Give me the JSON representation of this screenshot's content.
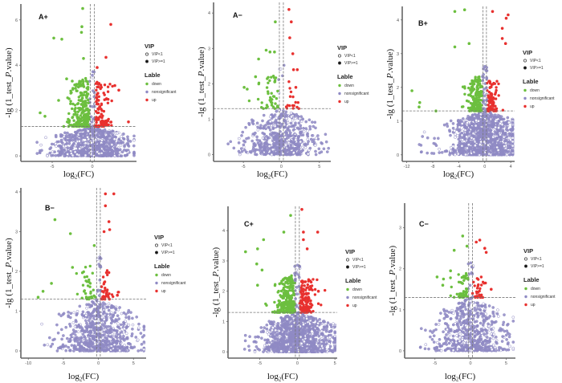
{
  "figure": {
    "description": "Six volcano plots of differential expression",
    "colors": {
      "down": "#6cbf3f",
      "nonsignificant": "#8f8ac4",
      "up": "#e8312f",
      "threshold_line": "#777777",
      "axis": "#666666"
    }
  },
  "chart_data": [
    {
      "type": "scatter",
      "panel_label": "A+",
      "xlabel": "log2(FC)",
      "ylabel": "-lg (1_test_P.value)",
      "xlim": [
        -8.5,
        5.5
      ],
      "ylim": [
        -0.1,
        6.7
      ],
      "x_ticks": [
        -5,
        0
      ],
      "y_ticks": [
        0,
        2,
        4,
        6
      ],
      "thresholds": {
        "fc_left": -0.263,
        "fc_right": 0.263,
        "p_line": 1.301
      },
      "legend": {
        "vip_title": "VIP",
        "vip_entries": [
          "VIP<1",
          "VIP>=1"
        ],
        "label_title": "Lable",
        "label_entries": [
          "down",
          "nonsignificant",
          "up"
        ]
      },
      "highlight_points": {
        "down": [
          [
            -1.2,
            6.5
          ],
          [
            -1.3,
            5.7
          ],
          [
            -1.35,
            5.45
          ],
          [
            -4.8,
            5.2
          ],
          [
            -3.8,
            5.15
          ],
          [
            -6.5,
            1.9
          ],
          [
            -5.9,
            1.75
          ],
          [
            -4.2,
            2.45
          ],
          [
            -3.2,
            3.4
          ],
          [
            -2.5,
            3.3
          ],
          [
            -1.1,
            4.3
          ]
        ],
        "up": [
          [
            2.3,
            5.8
          ],
          [
            1.7,
            4.35
          ],
          [
            0.6,
            3.9
          ],
          [
            3.3,
            2.9
          ],
          [
            4.5,
            1.5
          ],
          [
            2.8,
            3.1
          ]
        ]
      },
      "counts_estimate": {
        "down": 600,
        "up": 250,
        "nonsignificant": 3500
      }
    },
    {
      "type": "scatter",
      "panel_label": "A−",
      "xlabel": "log2(FC)",
      "ylabel": "-lg (1_test_P.value)",
      "xlim": [
        -8.5,
        6.5
      ],
      "ylim": [
        -0.1,
        4.3
      ],
      "x_ticks": [
        -5,
        0,
        5
      ],
      "y_ticks": [
        0,
        1,
        2,
        3,
        4
      ],
      "thresholds": {
        "fc_left": -0.263,
        "fc_right": 0.263,
        "p_line": 1.301
      },
      "legend": {
        "vip_title": "VIP",
        "vip_entries": [
          "VIP<1",
          "VIP>=1"
        ],
        "label_title": "Lable",
        "label_entries": [
          "down",
          "nonsignificant",
          "up"
        ]
      },
      "highlight_points": {
        "down": [
          [
            -0.8,
            3.75
          ],
          [
            -2.0,
            2.95
          ],
          [
            -0.9,
            2.9
          ],
          [
            -1.5,
            2.9
          ],
          [
            -3.0,
            2.7
          ],
          [
            -3.4,
            2.2
          ],
          [
            -4.9,
            1.9
          ],
          [
            -4.5,
            1.85
          ]
        ],
        "up": [
          [
            1.0,
            4.1
          ],
          [
            1.3,
            3.75
          ],
          [
            1.1,
            3.3
          ],
          [
            1.5,
            2.85
          ],
          [
            1.6,
            2.4
          ],
          [
            2.1,
            2.4
          ],
          [
            1.9,
            1.9
          ]
        ]
      },
      "counts_estimate": {
        "down": 110,
        "up": 40,
        "nonsignificant": 2500
      }
    },
    {
      "type": "scatter",
      "panel_label": "B+",
      "xlabel": "log2(FC)",
      "ylabel": "-lg (1_test_P.value)",
      "xlim": [
        -12.2,
        4.6
      ],
      "ylim": [
        -0.1,
        4.4
      ],
      "x_ticks": [
        -12,
        -8,
        -4,
        0,
        4
      ],
      "y_ticks": [
        0,
        1,
        2,
        3,
        4
      ],
      "thresholds": {
        "fc_left": -0.263,
        "fc_right": 0.263,
        "p_line": 1.301
      },
      "legend": {
        "vip_title": "VIP",
        "vip_entries": [
          "VIP<1",
          "VIP>=1"
        ],
        "label_title": "Lable",
        "label_entries": [
          "down",
          "nonsignificant",
          "up"
        ]
      },
      "highlight_points": {
        "down": [
          [
            -4.6,
            4.25
          ],
          [
            -3.1,
            4.3
          ],
          [
            -11.2,
            1.9
          ],
          [
            -10.0,
            1.55
          ],
          [
            -10.1,
            1.42
          ],
          [
            -7.5,
            1.3
          ],
          [
            -4.6,
            3.2
          ],
          [
            -2.4,
            3.3
          ]
        ],
        "up": [
          [
            1.2,
            4.25
          ],
          [
            3.6,
            4.15
          ],
          [
            3.3,
            4.05
          ],
          [
            2.7,
            3.75
          ],
          [
            2.7,
            3.45
          ],
          [
            3.2,
            3.3
          ]
        ]
      },
      "counts_estimate": {
        "down": 450,
        "up": 200,
        "nonsignificant": 6000
      }
    },
    {
      "type": "scatter",
      "panel_label": "B−",
      "xlabel": "log2(FC)",
      "ylabel": "-lg (1_test_P.value)",
      "xlim": [
        -10.6,
        6.8
      ],
      "ylim": [
        -0.1,
        4.1
      ],
      "x_ticks": [
        -10,
        -5,
        0,
        5
      ],
      "y_ticks": [
        0,
        1,
        2,
        3,
        4
      ],
      "thresholds": {
        "fc_left": -0.263,
        "fc_right": 0.263,
        "p_line": 1.301
      },
      "legend": {
        "vip_title": "VIP",
        "vip_entries": [
          "VIP<1",
          "VIP>=1"
        ],
        "label_title": "Lable",
        "label_entries": [
          "down",
          "nonsignificant",
          "up"
        ]
      },
      "highlight_points": {
        "down": [
          [
            -6.2,
            3.3
          ],
          [
            -4.0,
            2.95
          ],
          [
            -0.6,
            2.65
          ],
          [
            -8.6,
            1.35
          ],
          [
            -7.9,
            1.5
          ],
          [
            -6.7,
            1.7
          ],
          [
            -3.7,
            2.1
          ]
        ],
        "up": [
          [
            1.0,
            3.95
          ],
          [
            2.2,
            3.95
          ],
          [
            1.0,
            3.65
          ],
          [
            1.5,
            3.25
          ],
          [
            1.6,
            3.05
          ],
          [
            0.8,
            3.0
          ],
          [
            2.7,
            1.4
          ]
        ]
      },
      "counts_estimate": {
        "down": 90,
        "up": 100,
        "nonsignificant": 3000
      }
    },
    {
      "type": "scatter",
      "panel_label": "C+",
      "xlabel": "log2(FC)",
      "ylabel": "-lg (1_test_P.value)",
      "xlim": [
        -8.8,
        5.3
      ],
      "ylim": [
        -0.1,
        4.8
      ],
      "x_ticks": [
        -5,
        0,
        5
      ],
      "y_ticks": [
        0,
        1,
        2,
        3,
        4
      ],
      "thresholds": {
        "fc_left": -0.263,
        "fc_right": 0.263,
        "p_line": 1.301
      },
      "legend": {
        "vip_title": "VIP",
        "vip_entries": [
          "VIP<1",
          "VIP>=1"
        ],
        "label_title": "Lable",
        "label_entries": [
          "down",
          "nonsignificant",
          "up"
        ]
      },
      "highlight_points": {
        "down": [
          [
            -0.9,
            4.5
          ],
          [
            -1.8,
            3.95
          ],
          [
            -6.9,
            3.3
          ],
          [
            -5.3,
            3.4
          ],
          [
            -5.4,
            2.9
          ],
          [
            -4.7,
            2.7
          ],
          [
            -5.3,
            2.2
          ],
          [
            -4.5,
            3.7
          ]
        ],
        "up": [
          [
            0.6,
            4.7
          ],
          [
            0.8,
            3.95
          ],
          [
            2.7,
            3.95
          ],
          [
            0.8,
            3.7
          ],
          [
            1.3,
            3.4
          ],
          [
            2.8,
            2.0
          ]
        ]
      },
      "counts_estimate": {
        "down": 700,
        "up": 300,
        "nonsignificant": 6500
      }
    },
    {
      "type": "scatter",
      "panel_label": "C−",
      "xlabel": "log2(FC)",
      "ylabel": "-lg (1_test_P.value)",
      "xlim": [
        -8.8,
        6.3
      ],
      "ylim": [
        -0.1,
        3.6
      ],
      "x_ticks": [
        -5,
        0,
        5
      ],
      "y_ticks": [
        0,
        1,
        2,
        3
      ],
      "thresholds": {
        "fc_left": -0.263,
        "fc_right": 0.263,
        "p_line": 1.301
      },
      "legend": {
        "vip_title": "VIP",
        "vip_entries": [
          "VIP<1",
          "VIP>=1"
        ],
        "label_title": "Lable",
        "label_entries": [
          "down",
          "nonsignificant",
          "up"
        ]
      },
      "highlight_points": {
        "down": [
          [
            -1.1,
            2.8
          ],
          [
            -0.5,
            2.55
          ],
          [
            -2.3,
            2.45
          ],
          [
            -4.7,
            1.8
          ],
          [
            -3.8,
            1.75
          ],
          [
            -3.9,
            1.6
          ],
          [
            -2.8,
            1.95
          ]
        ],
        "up": [
          [
            1.3,
            2.7
          ],
          [
            2.0,
            2.5
          ],
          [
            2.2,
            2.4
          ],
          [
            0.8,
            2.65
          ],
          [
            2.9,
            1.5
          ]
        ]
      },
      "counts_estimate": {
        "down": 120,
        "up": 80,
        "nonsignificant": 2500
      }
    }
  ]
}
